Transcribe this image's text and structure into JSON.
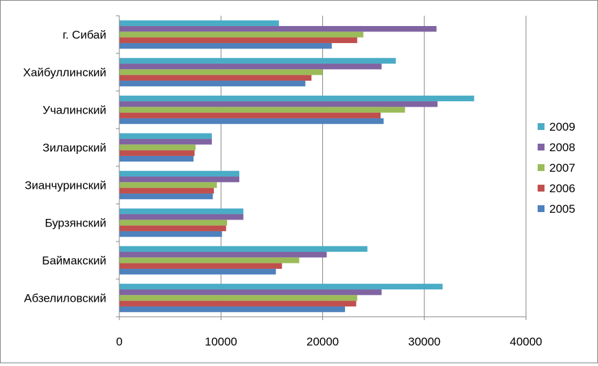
{
  "chart_data": {
    "type": "bar",
    "orientation": "horizontal",
    "title": "",
    "xlabel": "",
    "ylabel": "",
    "xlim": [
      0,
      40000
    ],
    "x_ticks": [
      0,
      10000,
      20000,
      30000,
      40000
    ],
    "x_tick_labels": [
      "0",
      "10000",
      "20000",
      "30000",
      "40000"
    ],
    "grid": "vertical",
    "legend_position": "right",
    "categories": [
      "г. Сибай",
      "Хайбуллинский",
      "Учалинский",
      "Зилаирский",
      "Зианчуринский",
      "Бурзянский",
      "Баймакский",
      "Абзелиловский"
    ],
    "series": [
      {
        "name": "2009",
        "color": "#4BACC6",
        "values": [
          15700,
          27200,
          34900,
          9100,
          11800,
          12200,
          24400,
          31800
        ]
      },
      {
        "name": "2008",
        "color": "#8064A2",
        "values": [
          31200,
          25800,
          31300,
          9100,
          11800,
          12200,
          20400,
          25800
        ]
      },
      {
        "name": "2007",
        "color": "#9BBB59",
        "values": [
          24000,
          20000,
          28100,
          7500,
          9600,
          10600,
          17700,
          23400
        ]
      },
      {
        "name": "2006",
        "color": "#C0504D",
        "values": [
          23400,
          18900,
          25700,
          7400,
          9300,
          10500,
          16000,
          23300
        ]
      },
      {
        "name": "2005",
        "color": "#4F81BD",
        "values": [
          20900,
          18300,
          26000,
          7300,
          9200,
          10100,
          15400,
          22200
        ]
      }
    ]
  }
}
